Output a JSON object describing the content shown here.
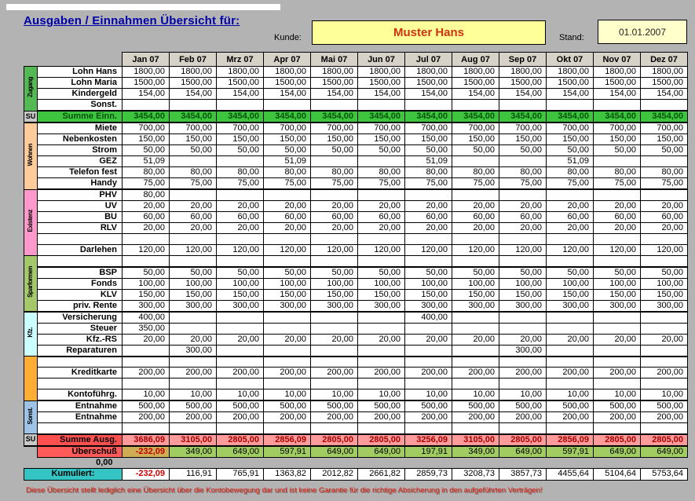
{
  "header": {
    "title": "Ausgaben / Einnahmen Übersicht für:",
    "kunde_label": "Kunde:",
    "kunde_value": "Muster Hans",
    "stand_label": "Stand:",
    "stand_value": "01.01.2007"
  },
  "months": [
    "Jan 07",
    "Feb 07",
    "Mrz 07",
    "Apr 07",
    "Mai 07",
    "Jun 07",
    "Jul 07",
    "Aug 07",
    "Sep 07",
    "Okt 07",
    "Nov 07",
    "Dez 07"
  ],
  "rows": [
    {
      "label": "Lohn Hans",
      "group": {
        "id": "zugang",
        "label": "Zugang",
        "span": 4,
        "color": "#53b953"
      },
      "values": [
        "1800,00",
        "1800,00",
        "1800,00",
        "1800,00",
        "1800,00",
        "1800,00",
        "1800,00",
        "1800,00",
        "1800,00",
        "1800,00",
        "1800,00",
        "1800,00"
      ]
    },
    {
      "label": "Lohn Maria",
      "values": [
        "1500,00",
        "1500,00",
        "1500,00",
        "1500,00",
        "1500,00",
        "1500,00",
        "1500,00",
        "1500,00",
        "1500,00",
        "1500,00",
        "1500,00",
        "1500,00"
      ]
    },
    {
      "label": "Kindergeld",
      "values": [
        "154,00",
        "154,00",
        "154,00",
        "154,00",
        "154,00",
        "154,00",
        "154,00",
        "154,00",
        "154,00",
        "154,00",
        "154,00",
        "154,00"
      ]
    },
    {
      "label": "Sonst.",
      "thick": true,
      "values": [
        "",
        "",
        "",
        "",
        "",
        "",
        "",
        "",
        "",
        "",
        "",
        ""
      ]
    },
    {
      "label": "Summe Einn.",
      "su": "SU",
      "type": "sum-in",
      "thick": true,
      "values": [
        "3454,00",
        "3454,00",
        "3454,00",
        "3454,00",
        "3454,00",
        "3454,00",
        "3454,00",
        "3454,00",
        "3454,00",
        "3454,00",
        "3454,00",
        "3454,00"
      ]
    },
    {
      "label": "Miete",
      "group": {
        "id": "wohnen",
        "label": "Wohnen",
        "span": 6,
        "color": "#ffcc99"
      },
      "values": [
        "700,00",
        "700,00",
        "700,00",
        "700,00",
        "700,00",
        "700,00",
        "700,00",
        "700,00",
        "700,00",
        "700,00",
        "700,00",
        "700,00"
      ]
    },
    {
      "label": "Nebenkosten",
      "values": [
        "150,00",
        "150,00",
        "150,00",
        "150,00",
        "150,00",
        "150,00",
        "150,00",
        "150,00",
        "150,00",
        "150,00",
        "150,00",
        "150,00"
      ]
    },
    {
      "label": "Strom",
      "values": [
        "50,00",
        "50,00",
        "50,00",
        "50,00",
        "50,00",
        "50,00",
        "50,00",
        "50,00",
        "50,00",
        "50,00",
        "50,00",
        "50,00"
      ]
    },
    {
      "label": "GEZ",
      "values": [
        "51,09",
        "",
        "",
        "51,09",
        "",
        "",
        "51,09",
        "",
        "",
        "51,09",
        "",
        ""
      ]
    },
    {
      "label": "Telefon fest",
      "values": [
        "80,00",
        "80,00",
        "80,00",
        "80,00",
        "80,00",
        "80,00",
        "80,00",
        "80,00",
        "80,00",
        "80,00",
        "80,00",
        "80,00"
      ]
    },
    {
      "label": "Handy",
      "thick": true,
      "values": [
        "75,00",
        "75,00",
        "75,00",
        "75,00",
        "75,00",
        "75,00",
        "75,00",
        "75,00",
        "75,00",
        "75,00",
        "75,00",
        "75,00"
      ]
    },
    {
      "label": "PHV",
      "group": {
        "id": "existenz",
        "label": "Existenz",
        "span": 6,
        "color": "#ff99cc"
      },
      "values": [
        "80,00",
        "",
        "",
        "",
        "",
        "",
        "",
        "",
        "",
        "",
        "",
        ""
      ]
    },
    {
      "label": "UV",
      "values": [
        "20,00",
        "20,00",
        "20,00",
        "20,00",
        "20,00",
        "20,00",
        "20,00",
        "20,00",
        "20,00",
        "20,00",
        "20,00",
        "20,00"
      ]
    },
    {
      "label": "BU",
      "values": [
        "60,00",
        "60,00",
        "60,00",
        "60,00",
        "60,00",
        "60,00",
        "60,00",
        "60,00",
        "60,00",
        "60,00",
        "60,00",
        "60,00"
      ]
    },
    {
      "label": "RLV",
      "values": [
        "20,00",
        "20,00",
        "20,00",
        "20,00",
        "20,00",
        "20,00",
        "20,00",
        "20,00",
        "20,00",
        "20,00",
        "20,00",
        "20,00"
      ]
    },
    {
      "label": "",
      "values": [
        "",
        "",
        "",
        "",
        "",
        "",
        "",
        "",
        "",
        "",
        "",
        ""
      ]
    },
    {
      "label": "Darlehen",
      "values": [
        "120,00",
        "120,00",
        "120,00",
        "120,00",
        "120,00",
        "120,00",
        "120,00",
        "120,00",
        "120,00",
        "120,00",
        "120,00",
        "120,00"
      ]
    },
    {
      "label": "",
      "thick": true,
      "group": {
        "id": "sparformen",
        "label": "Sparformen",
        "span": 5,
        "color": "#a5c86b"
      },
      "values": [
        "",
        "",
        "",
        "",
        "",
        "",
        "",
        "",
        "",
        "",
        "",
        ""
      ]
    },
    {
      "label": "BSP",
      "values": [
        "50,00",
        "50,00",
        "50,00",
        "50,00",
        "50,00",
        "50,00",
        "50,00",
        "50,00",
        "50,00",
        "50,00",
        "50,00",
        "50,00"
      ]
    },
    {
      "label": "Fonds",
      "values": [
        "100,00",
        "100,00",
        "100,00",
        "100,00",
        "100,00",
        "100,00",
        "100,00",
        "100,00",
        "100,00",
        "100,00",
        "100,00",
        "100,00"
      ]
    },
    {
      "label": "KLV",
      "values": [
        "150,00",
        "150,00",
        "150,00",
        "150,00",
        "150,00",
        "150,00",
        "150,00",
        "150,00",
        "150,00",
        "150,00",
        "150,00",
        "150,00"
      ]
    },
    {
      "label": "priv. Rente",
      "thick": true,
      "values": [
        "300,00",
        "300,00",
        "300,00",
        "300,00",
        "300,00",
        "300,00",
        "300,00",
        "300,00",
        "300,00",
        "300,00",
        "300,00",
        "300,00"
      ]
    },
    {
      "label": "Versicherung",
      "group": {
        "id": "kfz",
        "label": "Kfz.",
        "span": 4,
        "color": "#ccffff"
      },
      "values": [
        "400,00",
        "",
        "",
        "",
        "",
        "",
        "400,00",
        "",
        "",
        "",
        "",
        ""
      ]
    },
    {
      "label": "Steuer",
      "values": [
        "350,00",
        "",
        "",
        "",
        "",
        "",
        "",
        "",
        "",
        "",
        "",
        ""
      ]
    },
    {
      "label": "Kfz.-RS",
      "values": [
        "20,00",
        "20,00",
        "20,00",
        "20,00",
        "20,00",
        "20,00",
        "20,00",
        "20,00",
        "20,00",
        "20,00",
        "20,00",
        "20,00"
      ]
    },
    {
      "label": "Reparaturen",
      "thick": true,
      "values": [
        "",
        "300,00",
        "",
        "",
        "",
        "",
        "",
        "",
        "300,00",
        "",
        "",
        ""
      ]
    },
    {
      "label": "",
      "group": {
        "id": "kredit",
        "label": "",
        "span": 4,
        "color": "#ffad33"
      },
      "values": [
        "",
        "",
        "",
        "",
        "",
        "",
        "",
        "",
        "",
        "",
        "",
        ""
      ]
    },
    {
      "label": "Kreditkarte",
      "values": [
        "200,00",
        "200,00",
        "200,00",
        "200,00",
        "200,00",
        "200,00",
        "200,00",
        "200,00",
        "200,00",
        "200,00",
        "200,00",
        "200,00"
      ]
    },
    {
      "label": "",
      "values": [
        "",
        "",
        "",
        "",
        "",
        "",
        "",
        "",
        "",
        "",
        "",
        ""
      ]
    },
    {
      "label": "Kontoführg.",
      "thick": true,
      "values": [
        "10,00",
        "10,00",
        "10,00",
        "10,00",
        "10,00",
        "10,00",
        "10,00",
        "10,00",
        "10,00",
        "10,00",
        "10,00",
        "10,00"
      ]
    },
    {
      "label": "Entnahme",
      "group": {
        "id": "sonst",
        "label": "Sonst.",
        "span": 3,
        "color": "#9dc3e6"
      },
      "values": [
        "500,00",
        "500,00",
        "500,00",
        "500,00",
        "500,00",
        "500,00",
        "500,00",
        "500,00",
        "500,00",
        "500,00",
        "500,00",
        "500,00"
      ]
    },
    {
      "label": "Entnahme",
      "values": [
        "200,00",
        "200,00",
        "200,00",
        "200,00",
        "200,00",
        "200,00",
        "200,00",
        "200,00",
        "200,00",
        "200,00",
        "200,00",
        "200,00"
      ]
    },
    {
      "label": "",
      "thick": true,
      "values": [
        "",
        "",
        "",
        "",
        "",
        "",
        "",
        "",
        "",
        "",
        "",
        ""
      ]
    },
    {
      "label": "Summe Ausg.",
      "su": "SU",
      "type": "sum-out",
      "thick": true,
      "values": [
        "3686,09",
        "3105,00",
        "2805,00",
        "2856,09",
        "2805,00",
        "2805,00",
        "3256,09",
        "3105,00",
        "2805,00",
        "2856,09",
        "2805,00",
        "2805,00"
      ]
    }
  ],
  "summary": {
    "ueberschuss_label": "Überschuß",
    "ueberschuss": [
      "-232,09",
      "349,00",
      "649,00",
      "597,91",
      "649,00",
      "649,00",
      "197,91",
      "349,00",
      "649,00",
      "597,91",
      "649,00",
      "649,00"
    ],
    "zero": "0,00",
    "kumuliert_label": "Kumuliert:",
    "kumuliert": [
      "-232,09",
      "116,91",
      "765,91",
      "1363,82",
      "2012,82",
      "2661,82",
      "2859,73",
      "3208,73",
      "3857,73",
      "4455,64",
      "5104,64",
      "5753,64"
    ]
  },
  "footer": "Diese Übersicht stellt lediglich eine Übersicht über die Kontobewegung dar und ist keine Garantie für die richtige Absicherung in den aufgeführten Verträgen!",
  "colors": {
    "page_bg": "#b3b3b3",
    "title_color": "#0000a8",
    "kunde_bg": "#ffff99",
    "kunde_text": "#cc3311",
    "stand_bg": "#ffffcc",
    "hdr_bg": "#d6d2c8",
    "su_bg": "#c9c9c9",
    "sumin_bg": "#3ec43e",
    "sumin_fg": "#05520a",
    "sumout_label_bg": "#ff5050",
    "sumout_bg": "#ff9b9b",
    "sumout_fg": "#a80000",
    "ueb_label_bg": "#ff5a5a",
    "ueb_bg": "#a0cc62",
    "ueb_first_bg": "#cfad55",
    "ueb_first_fg": "#c00000",
    "kum_bg": "#35c4c4",
    "kum_first_fg": "#d00000",
    "footer_fg": "#e82010"
  }
}
